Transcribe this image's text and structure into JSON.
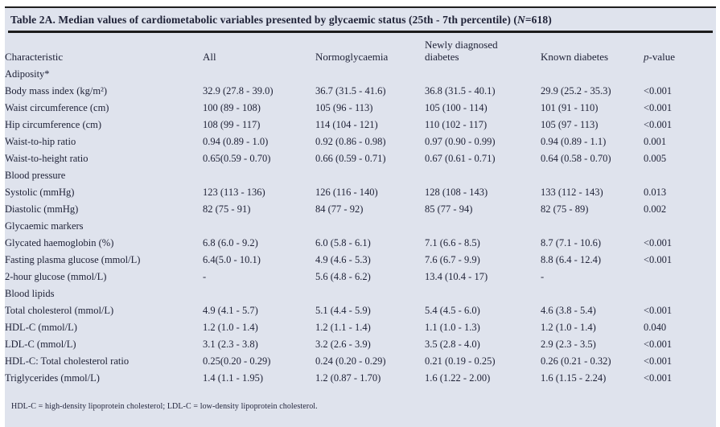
{
  "page": {
    "panel_bg": "#dfe3ed",
    "text_color": "#1e2136",
    "rule_color": "#1c1c1c"
  },
  "table": {
    "title": {
      "prefix": "Table 2A. Median values of cardiometabolic variables presented by glycaemic status (25th - 7th percentile) (",
      "n_italic": "N",
      "suffix": "=618)"
    },
    "header": {
      "characteristic": "Characteristic",
      "all": "All",
      "normoglycaemia": "Normoglycaemia",
      "newly_line1": "Newly diagnosed",
      "newly_line2": "diabetes",
      "known": "Known diabetes",
      "p_italic": "p",
      "p_rest": "-value"
    },
    "sections": [
      {
        "label": "Adiposity*",
        "rows": [
          {
            "label": "Body mass index (kg/m²)",
            "values": [
              "32.9 (27.8 - 39.0)",
              "36.7 (31.5 - 41.6)",
              "36.8 (31.5 - 40.1)",
              "29.9 (25.2 - 35.3)",
              "<0.001"
            ]
          },
          {
            "label": "Waist circumference (cm)",
            "values": [
              "100 (89 - 108)",
              "105 (96 - 113)",
              "105 (100 - 114)",
              "101 (91 - 110)",
              "<0.001"
            ]
          },
          {
            "label": "Hip circumference (cm)",
            "values": [
              "108 (99 - 117)",
              "114 (104 - 121)",
              "110 (102 - 117)",
              "105 (97 - 113)",
              "<0.001"
            ]
          },
          {
            "label": "Waist-to-hip ratio",
            "values": [
              "0.94 (0.89 - 1.0)",
              "0.92 (0.86 - 0.98)",
              "0.97 (0.90 - 0.99)",
              "0.94 (0.89 - 1.1)",
              "0.001"
            ]
          },
          {
            "label": "Waist-to-height ratio",
            "values": [
              "0.65(0.59 - 0.70)",
              "0.66 (0.59 - 0.71)",
              "0.67 (0.61 - 0.71)",
              "0.64 (0.58 - 0.70)",
              "0.005"
            ]
          }
        ]
      },
      {
        "label": "Blood pressure",
        "rows": [
          {
            "label": "Systolic (mmHg)",
            "values": [
              "123 (113 - 136)",
              "126 (116 - 140)",
              "128 (108 - 143)",
              "133 (112 - 143)",
              "0.013"
            ]
          },
          {
            "label": "Diastolic (mmHg)",
            "values": [
              "82 (75 - 91)",
              "84 (77 - 92)",
              "85 (77 - 94)",
              "82 (75 - 89)",
              "0.002"
            ]
          }
        ]
      },
      {
        "label": "Glycaemic markers",
        "rows": [
          {
            "label": "Glycated haemoglobin (%)",
            "values": [
              "6.8 (6.0 - 9.2)",
              "6.0 (5.8 - 6.1)",
              "7.1 (6.6 - 8.5)",
              "8.7 (7.1 - 10.6)",
              "<0.001"
            ]
          },
          {
            "label": "Fasting plasma glucose (mmol/L)",
            "values": [
              "6.4(5.0 - 10.1)",
              "4.9 (4.6 - 5.3)",
              "7.6 (6.7 - 9.9)",
              "8.8 (6.4 - 12.4)",
              "<0.001"
            ]
          },
          {
            "label": "2-hour glucose (mmol/L)",
            "values": [
              "-",
              "5.6 (4.8 - 6.2)",
              "13.4 (10.4 - 17)",
              "-",
              ""
            ]
          }
        ]
      },
      {
        "label": "Blood lipids",
        "rows": [
          {
            "label": "Total cholesterol (mmol/L)",
            "values": [
              "4.9 (4.1 - 5.7)",
              "5.1 (4.4 - 5.9)",
              "5.4 (4.5 - 6.0)",
              "4.6 (3.8 - 5.4)",
              "<0.001"
            ]
          },
          {
            "label": "HDL-C (mmol/L)",
            "values": [
              "1.2 (1.0 - 1.4)",
              "1.2 (1.1 - 1.4)",
              "1.1 (1.0 - 1.3)",
              "1.2 (1.0 - 1.4)",
              "0.040"
            ]
          },
          {
            "label": "LDL-C (mmol/L)",
            "values": [
              "3.1 (2.3 - 3.8)",
              "3.2 (2.6 - 3.9)",
              "3.5 (2.8 - 4.0)",
              "2.9 (2.3 - 3.5)",
              "<0.001"
            ]
          },
          {
            "label": "HDL-C: Total cholesterol ratio",
            "values": [
              "0.25(0.20 - 0.29)",
              "0.24 (0.20 - 0.29)",
              "0.21 (0.19 - 0.25)",
              "0.26 (0.21 - 0.32)",
              "<0.001"
            ]
          },
          {
            "label": "Triglycerides (mmol/L)",
            "values": [
              "1.4 (1.1 - 1.95)",
              "1.2 (0.87 - 1.70)",
              "1.6 (1.22 - 2.00)",
              "1.6 (1.15 - 2.24)",
              "<0.001"
            ]
          }
        ]
      }
    ],
    "footnote": "HDL-C = high-density lipoprotein cholesterol; LDL-C = low-density lipoprotein cholesterol."
  }
}
